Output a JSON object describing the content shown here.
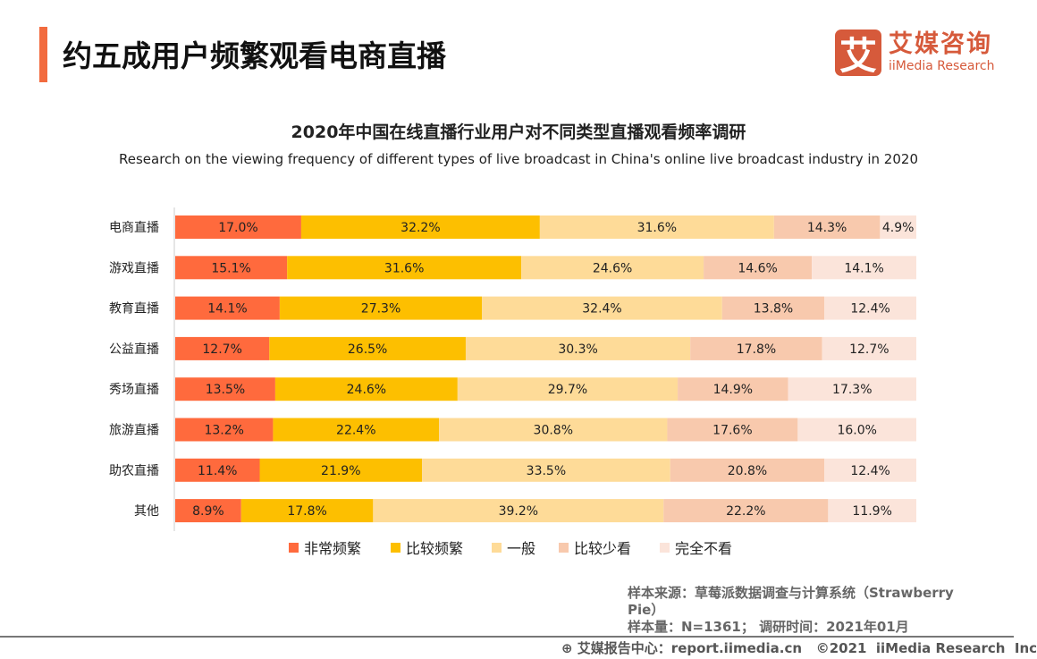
{
  "header": {
    "title": "约五成用户频繁观看电商直播",
    "logo_mark": "艾",
    "logo_cn": "艾媒咨询",
    "logo_en": "iiMedia Research"
  },
  "chart_data": {
    "type": "bar",
    "orientation": "horizontal",
    "stacked": true,
    "title": "2020年中国在线直播行业用户对不同类型直播观看频率调研",
    "subtitle": "Research on the viewing frequency of different types of live broadcast in China's online live broadcast industry in 2020",
    "categories": [
      "电商直播",
      "游戏直播",
      "教育直播",
      "公益直播",
      "秀场直播",
      "旅游直播",
      "助农直播",
      "其他"
    ],
    "series": [
      {
        "name": "非常频繁",
        "color": "#ff6a3d",
        "values": [
          17.0,
          15.1,
          14.1,
          12.7,
          13.5,
          13.2,
          11.4,
          8.9
        ]
      },
      {
        "name": "比较频繁",
        "color": "#fdbf00",
        "values": [
          32.2,
          31.6,
          27.3,
          26.5,
          24.6,
          22.4,
          21.9,
          17.8
        ]
      },
      {
        "name": "一般",
        "color": "#fedb98",
        "values": [
          31.6,
          24.6,
          32.4,
          30.3,
          29.7,
          30.8,
          33.5,
          39.2
        ]
      },
      {
        "name": "比较少看",
        "color": "#f8c9ad",
        "values": [
          14.3,
          14.6,
          13.8,
          17.8,
          14.9,
          17.6,
          20.8,
          22.2
        ]
      },
      {
        "name": "完全不看",
        "color": "#fbe4da",
        "values": [
          4.9,
          14.1,
          12.4,
          12.7,
          17.3,
          16.0,
          12.4,
          11.9
        ]
      }
    ],
    "value_format": "percent",
    "legend": "bottom",
    "grid": false
  },
  "source": {
    "line1": "样本来源：草莓派数据调查与计算系统（Strawberry Pie）",
    "line2": "样本量：N=1361； 调研时间：2021年01月"
  },
  "footer": {
    "text": "艾媒报告中心：report.iimedia.cn   ©2021  iiMedia Research  Inc",
    "icon": "globe-icon"
  }
}
